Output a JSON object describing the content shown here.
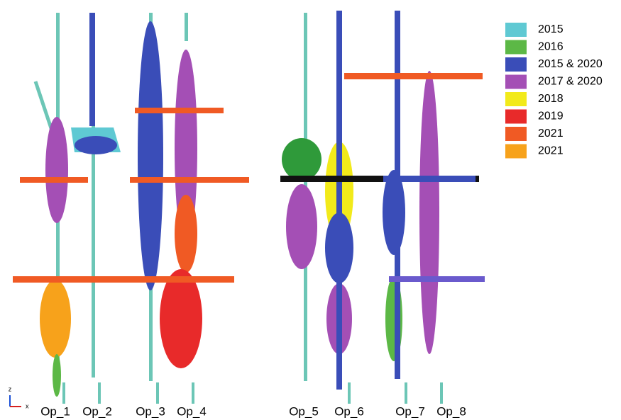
{
  "legend": {
    "items": [
      {
        "label": "2015",
        "color": "#5fc9d3"
      },
      {
        "label": "2016",
        "color": "#5cb846"
      },
      {
        "label": "2015 & 2020",
        "color": "#3a4db8"
      },
      {
        "label": "2017 & 2020",
        "color": "#a44fb5"
      },
      {
        "label": "2018",
        "color": "#f2ea1a"
      },
      {
        "label": "2019",
        "color": "#e82a2a"
      },
      {
        "label": "2021",
        "color": "#f05a24"
      },
      {
        "label": "2021",
        "color": "#f7a21b"
      }
    ]
  },
  "wells": [
    {
      "label": "Op_1"
    },
    {
      "label": "Op_2"
    },
    {
      "label": "Op_3"
    },
    {
      "label": "Op_4"
    },
    {
      "label": "Op_5"
    },
    {
      "label": "Op_6"
    },
    {
      "label": "Op_7"
    },
    {
      "label": "Op_8"
    }
  ],
  "axes": {
    "z": "z",
    "x": "x"
  }
}
